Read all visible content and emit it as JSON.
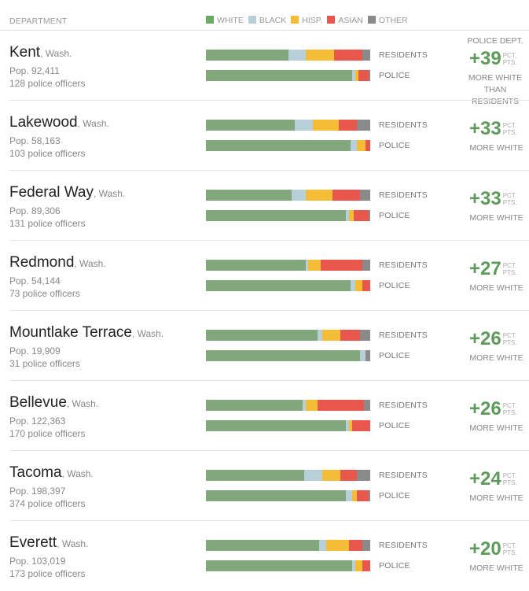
{
  "header": {
    "department_label": "DEPARTMENT"
  },
  "legend": [
    {
      "key": "white",
      "label": "WHITE",
      "color": "#6aaa62"
    },
    {
      "key": "black",
      "label": "BLACK",
      "color": "#b7cfd9"
    },
    {
      "key": "hisp",
      "label": "HISP.",
      "color": "#f5bd35"
    },
    {
      "key": "asian",
      "label": "ASIAN",
      "color": "#e7574b"
    },
    {
      "key": "other",
      "label": "OTHER",
      "color": "#8a8a8a"
    }
  ],
  "bar_colors": {
    "white": "#83a77c",
    "black": "#b7cfd9",
    "hisp": "#f5bd35",
    "asian": "#e7574b",
    "other": "#8a8a8a"
  },
  "labels": {
    "residents": "RESIDENTS",
    "police": "POLICE",
    "first_diff_head": "POLICE DEPT.",
    "diff_unit_1": "PCT.",
    "diff_unit_2": "PTS.",
    "diff_caption": "MORE WHITE",
    "first_diff_caption": "MORE WHITE THAN RESIDENTS"
  },
  "chart_data": {
    "type": "bar",
    "categories": [
      "Kent",
      "Lakewood",
      "Federal Way",
      "Redmond",
      "Mountlake Terrace",
      "Bellevue",
      "Tacoma",
      "Everett"
    ],
    "departments": [
      {
        "city": "Kent",
        "state": ", Wash.",
        "pop": "Pop. 92,411",
        "officers": "128 police officers",
        "diff": "+39",
        "residents": [
          50,
          11,
          17,
          17,
          5
        ],
        "police": [
          89,
          2,
          2,
          6,
          1
        ]
      },
      {
        "city": "Lakewood",
        "state": ", Wash.",
        "pop": "Pop. 58,163",
        "officers": "103 police officers",
        "diff": "+33",
        "residents": [
          54,
          11,
          16,
          11,
          8
        ],
        "police": [
          88,
          4,
          5,
          3,
          0
        ]
      },
      {
        "city": "Federal Way",
        "state": ", Wash.",
        "pop": "Pop. 89,306",
        "officers": "131 police officers",
        "diff": "+33",
        "residents": [
          52,
          9,
          16,
          17,
          6
        ],
        "police": [
          85,
          2,
          3,
          9,
          1
        ]
      },
      {
        "city": "Redmond",
        "state": ", Wash.",
        "pop": "Pop. 54,144",
        "officers": "73 police officers",
        "diff": "+27",
        "residents": [
          61,
          1,
          8,
          25,
          5
        ],
        "police": [
          88,
          3,
          4,
          5,
          0
        ]
      },
      {
        "city": "Mountlake Terrace",
        "state": ", Wash.",
        "pop": "Pop. 19,909",
        "officers": "31 police officers",
        "diff": "+26",
        "residents": [
          68,
          3,
          11,
          12,
          6
        ],
        "police": [
          94,
          3,
          0,
          0,
          3
        ]
      },
      {
        "city": "Bellevue",
        "state": ", Wash.",
        "pop": "Pop. 122,363",
        "officers": "170 police officers",
        "diff": "+26",
        "residents": [
          59,
          2,
          7,
          28,
          4
        ],
        "police": [
          85,
          2,
          2,
          11,
          0
        ]
      },
      {
        "city": "Tacoma",
        "state": ", Wash.",
        "pop": "Pop. 198,397",
        "officers": "374 police officers",
        "diff": "+24",
        "residents": [
          60,
          11,
          11,
          10,
          8
        ],
        "police": [
          85,
          4,
          3,
          7,
          1
        ]
      },
      {
        "city": "Everett",
        "state": ", Wash.",
        "pop": "Pop. 103,019",
        "officers": "173 police officers",
        "diff": "+20",
        "residents": [
          69,
          4,
          14,
          8,
          5
        ],
        "police": [
          89,
          2,
          4,
          5,
          0
        ]
      }
    ]
  }
}
